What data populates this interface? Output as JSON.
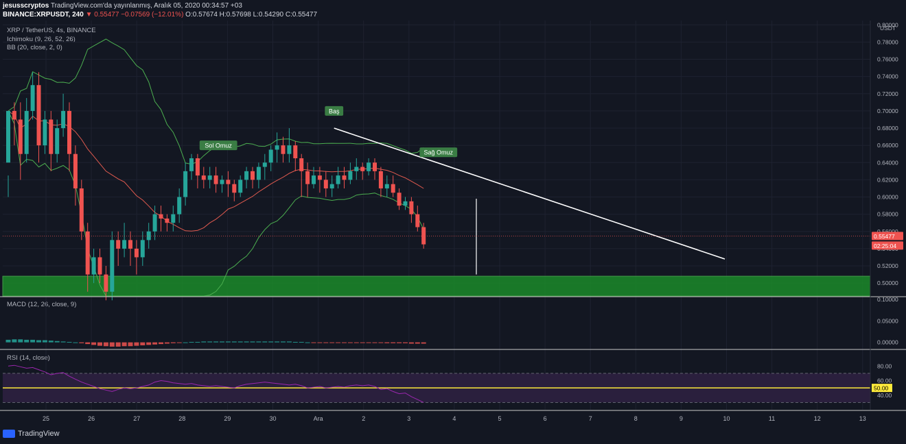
{
  "header": {
    "line1_user": "jesusscryptos",
    "line1_rest": " TradingView.com'da yayınlanmış, Aralık 05, 2020 00:34:57 +03",
    "line2_symbol": "BINANCE:XRPUSDT, 240",
    "line2_price": " 0.55477",
    "line2_change": " −0.07569 (−12.01%)",
    "line2_ohlc": " O:0.57674 H:0.57698 L:0.54290 C:0.55477"
  },
  "legend": {
    "pair": "XRP / TetherUS, 4s, BINANCE",
    "ichimoku": "Ichimoku (9, 26, 52, 26)",
    "bb": "BB (20, close, 2, 0)",
    "macd": "MACD (12, 26, close, 9)",
    "rsi": "RSI (14, close)"
  },
  "branding": {
    "logo_text": "TradingView"
  },
  "colors": {
    "background": "#131722",
    "up": "#26a69a",
    "down": "#ef5350",
    "bb_band": "#4caf50",
    "support_zone": "#1b8a2a",
    "trendline": "#ffffff",
    "rsi_band": "#2a1f3d",
    "rsi_line": "#9c27b0",
    "midline": "#ffeb3b"
  },
  "chart_data": {
    "type": "candlestick",
    "price_label": "USDT",
    "price_ticks": [
      "0.80000",
      "0.78000",
      "0.76000",
      "0.74000",
      "0.72000",
      "0.70000",
      "0.68000",
      "0.66000",
      "0.64000",
      "0.62000",
      "0.60000",
      "0.58000",
      "0.56000",
      "0.54000",
      "0.52000",
      "0.50000"
    ],
    "ylim": [
      0.485,
      0.805
    ],
    "x_ticks": [
      "25",
      "26",
      "27",
      "28",
      "29",
      "30",
      "Ara",
      "2",
      "3",
      "4",
      "5",
      "6",
      "7",
      "8",
      "9",
      "10",
      "11",
      "12",
      "13"
    ],
    "xlim": [
      24.05,
      13.35
    ],
    "current_price": "0.55477",
    "countdown": "02:25:04",
    "candles": [
      [
        0.64,
        0.7,
        0.625,
        0.6
      ],
      [
        0.7,
        0.69,
        0.71,
        0.66
      ],
      [
        0.69,
        0.65,
        0.71,
        0.62
      ],
      [
        0.65,
        0.7,
        0.715,
        0.64
      ],
      [
        0.7,
        0.73,
        0.745,
        0.69
      ],
      [
        0.73,
        0.66,
        0.745,
        0.64
      ],
      [
        0.66,
        0.69,
        0.7,
        0.65
      ],
      [
        0.69,
        0.65,
        0.7,
        0.63
      ],
      [
        0.65,
        0.68,
        0.69,
        0.64
      ],
      [
        0.68,
        0.7,
        0.72,
        0.67
      ],
      [
        0.7,
        0.65,
        0.71,
        0.63
      ],
      [
        0.65,
        0.61,
        0.66,
        0.59
      ],
      [
        0.61,
        0.56,
        0.62,
        0.55
      ],
      [
        0.56,
        0.51,
        0.57,
        0.49
      ],
      [
        0.51,
        0.53,
        0.54,
        0.5
      ],
      [
        0.53,
        0.51,
        0.54,
        0.5
      ],
      [
        0.51,
        0.49,
        0.52,
        0.48
      ],
      [
        0.49,
        0.55,
        0.56,
        0.48
      ],
      [
        0.55,
        0.54,
        0.56,
        0.52
      ],
      [
        0.54,
        0.55,
        0.57,
        0.53
      ],
      [
        0.55,
        0.54,
        0.56,
        0.52
      ],
      [
        0.54,
        0.53,
        0.55,
        0.51
      ],
      [
        0.53,
        0.55,
        0.56,
        0.52
      ],
      [
        0.55,
        0.56,
        0.57,
        0.54
      ],
      [
        0.56,
        0.58,
        0.59,
        0.55
      ],
      [
        0.58,
        0.575,
        0.59,
        0.56
      ],
      [
        0.575,
        0.57,
        0.58,
        0.56
      ],
      [
        0.57,
        0.58,
        0.59,
        0.56
      ],
      [
        0.58,
        0.6,
        0.61,
        0.57
      ],
      [
        0.6,
        0.63,
        0.64,
        0.59
      ],
      [
        0.63,
        0.645,
        0.65,
        0.62
      ],
      [
        0.645,
        0.625,
        0.65,
        0.61
      ],
      [
        0.625,
        0.62,
        0.635,
        0.61
      ],
      [
        0.62,
        0.625,
        0.635,
        0.61
      ],
      [
        0.625,
        0.615,
        0.635,
        0.605
      ],
      [
        0.615,
        0.62,
        0.625,
        0.605
      ],
      [
        0.62,
        0.615,
        0.63,
        0.6
      ],
      [
        0.615,
        0.605,
        0.62,
        0.595
      ],
      [
        0.605,
        0.62,
        0.625,
        0.6
      ],
      [
        0.62,
        0.63,
        0.635,
        0.61
      ],
      [
        0.63,
        0.62,
        0.635,
        0.61
      ],
      [
        0.62,
        0.635,
        0.64,
        0.61
      ],
      [
        0.635,
        0.64,
        0.65,
        0.62
      ],
      [
        0.64,
        0.655,
        0.66,
        0.63
      ],
      [
        0.655,
        0.66,
        0.675,
        0.64
      ],
      [
        0.66,
        0.65,
        0.67,
        0.64
      ],
      [
        0.65,
        0.66,
        0.68,
        0.64
      ],
      [
        0.66,
        0.645,
        0.665,
        0.63
      ],
      [
        0.645,
        0.63,
        0.65,
        0.6
      ],
      [
        0.63,
        0.615,
        0.64,
        0.6
      ],
      [
        0.615,
        0.625,
        0.635,
        0.61
      ],
      [
        0.625,
        0.62,
        0.635,
        0.605
      ],
      [
        0.62,
        0.61,
        0.63,
        0.6
      ],
      [
        0.61,
        0.615,
        0.625,
        0.6
      ],
      [
        0.615,
        0.625,
        0.635,
        0.61
      ],
      [
        0.625,
        0.62,
        0.635,
        0.61
      ],
      [
        0.62,
        0.63,
        0.64,
        0.615
      ],
      [
        0.63,
        0.635,
        0.645,
        0.62
      ],
      [
        0.635,
        0.63,
        0.64,
        0.62
      ],
      [
        0.63,
        0.64,
        0.645,
        0.625
      ],
      [
        0.64,
        0.63,
        0.645,
        0.62
      ],
      [
        0.63,
        0.61,
        0.635,
        0.6
      ],
      [
        0.61,
        0.615,
        0.625,
        0.6
      ],
      [
        0.615,
        0.605,
        0.625,
        0.6
      ],
      [
        0.605,
        0.59,
        0.61,
        0.585
      ],
      [
        0.59,
        0.595,
        0.6,
        0.585
      ],
      [
        0.595,
        0.58,
        0.6,
        0.57
      ],
      [
        0.58,
        0.565,
        0.59,
        0.56
      ],
      [
        0.565,
        0.545,
        0.57,
        0.54
      ]
    ],
    "annotations": [
      {
        "text": "Sol Omuz",
        "date": 28.8,
        "price": 0.66
      },
      {
        "text": "Baş",
        "date": 31.35,
        "price": 0.7
      },
      {
        "text": "Sağ Omuz",
        "date": 3.65,
        "price": 0.652
      }
    ],
    "support_zone": [
      0.485,
      0.508
    ],
    "macd": {
      "ticks": [
        "0.10000",
        "0.05000",
        "0.00000"
      ],
      "ylim": [
        -0.015,
        0.102
      ],
      "histogram": [
        0.006,
        0.007,
        0.007,
        0.006,
        0.006,
        0.005,
        0.005,
        0.004,
        0.003,
        0.002,
        0.001,
        0.0,
        -0.002,
        -0.004,
        -0.006,
        -0.008,
        -0.009,
        -0.01,
        -0.01,
        -0.009,
        -0.009,
        -0.008,
        -0.007,
        -0.006,
        -0.005,
        -0.004,
        -0.003,
        -0.002,
        -0.001,
        0.0,
        0.001,
        0.001,
        0.002,
        0.002,
        0.002,
        0.002,
        0.002,
        0.002,
        0.002,
        0.002,
        0.002,
        0.002,
        0.002,
        0.002,
        0.002,
        0.002,
        0.002,
        0.001,
        0.001,
        0.0,
        -0.001,
        -0.001,
        -0.001,
        -0.001,
        -0.001,
        -0.001,
        -0.001,
        -0.001,
        -0.001,
        -0.001,
        -0.001,
        -0.001,
        -0.002,
        -0.002,
        -0.002,
        -0.002,
        -0.003,
        -0.003,
        -0.003
      ]
    },
    "rsi": {
      "ticks": [
        "80.00",
        "60.00",
        "40.00"
      ],
      "ylim": [
        20,
        100
      ],
      "band": [
        30,
        70
      ],
      "midline": "50.00",
      "values": [
        80,
        81,
        79,
        77,
        78,
        75,
        72,
        68,
        70,
        71,
        66,
        62,
        58,
        55,
        52,
        49,
        47,
        45,
        48,
        50,
        49,
        50,
        52,
        54,
        58,
        60,
        59,
        57,
        56,
        55,
        56,
        54,
        53,
        52,
        53,
        52,
        51,
        50,
        53,
        55,
        56,
        57,
        58,
        57,
        56,
        55,
        54,
        55,
        53,
        50,
        51,
        52,
        50,
        51,
        52,
        51,
        53,
        54,
        53,
        54,
        52,
        48,
        49,
        45,
        42,
        43,
        38,
        34,
        30
      ]
    }
  }
}
